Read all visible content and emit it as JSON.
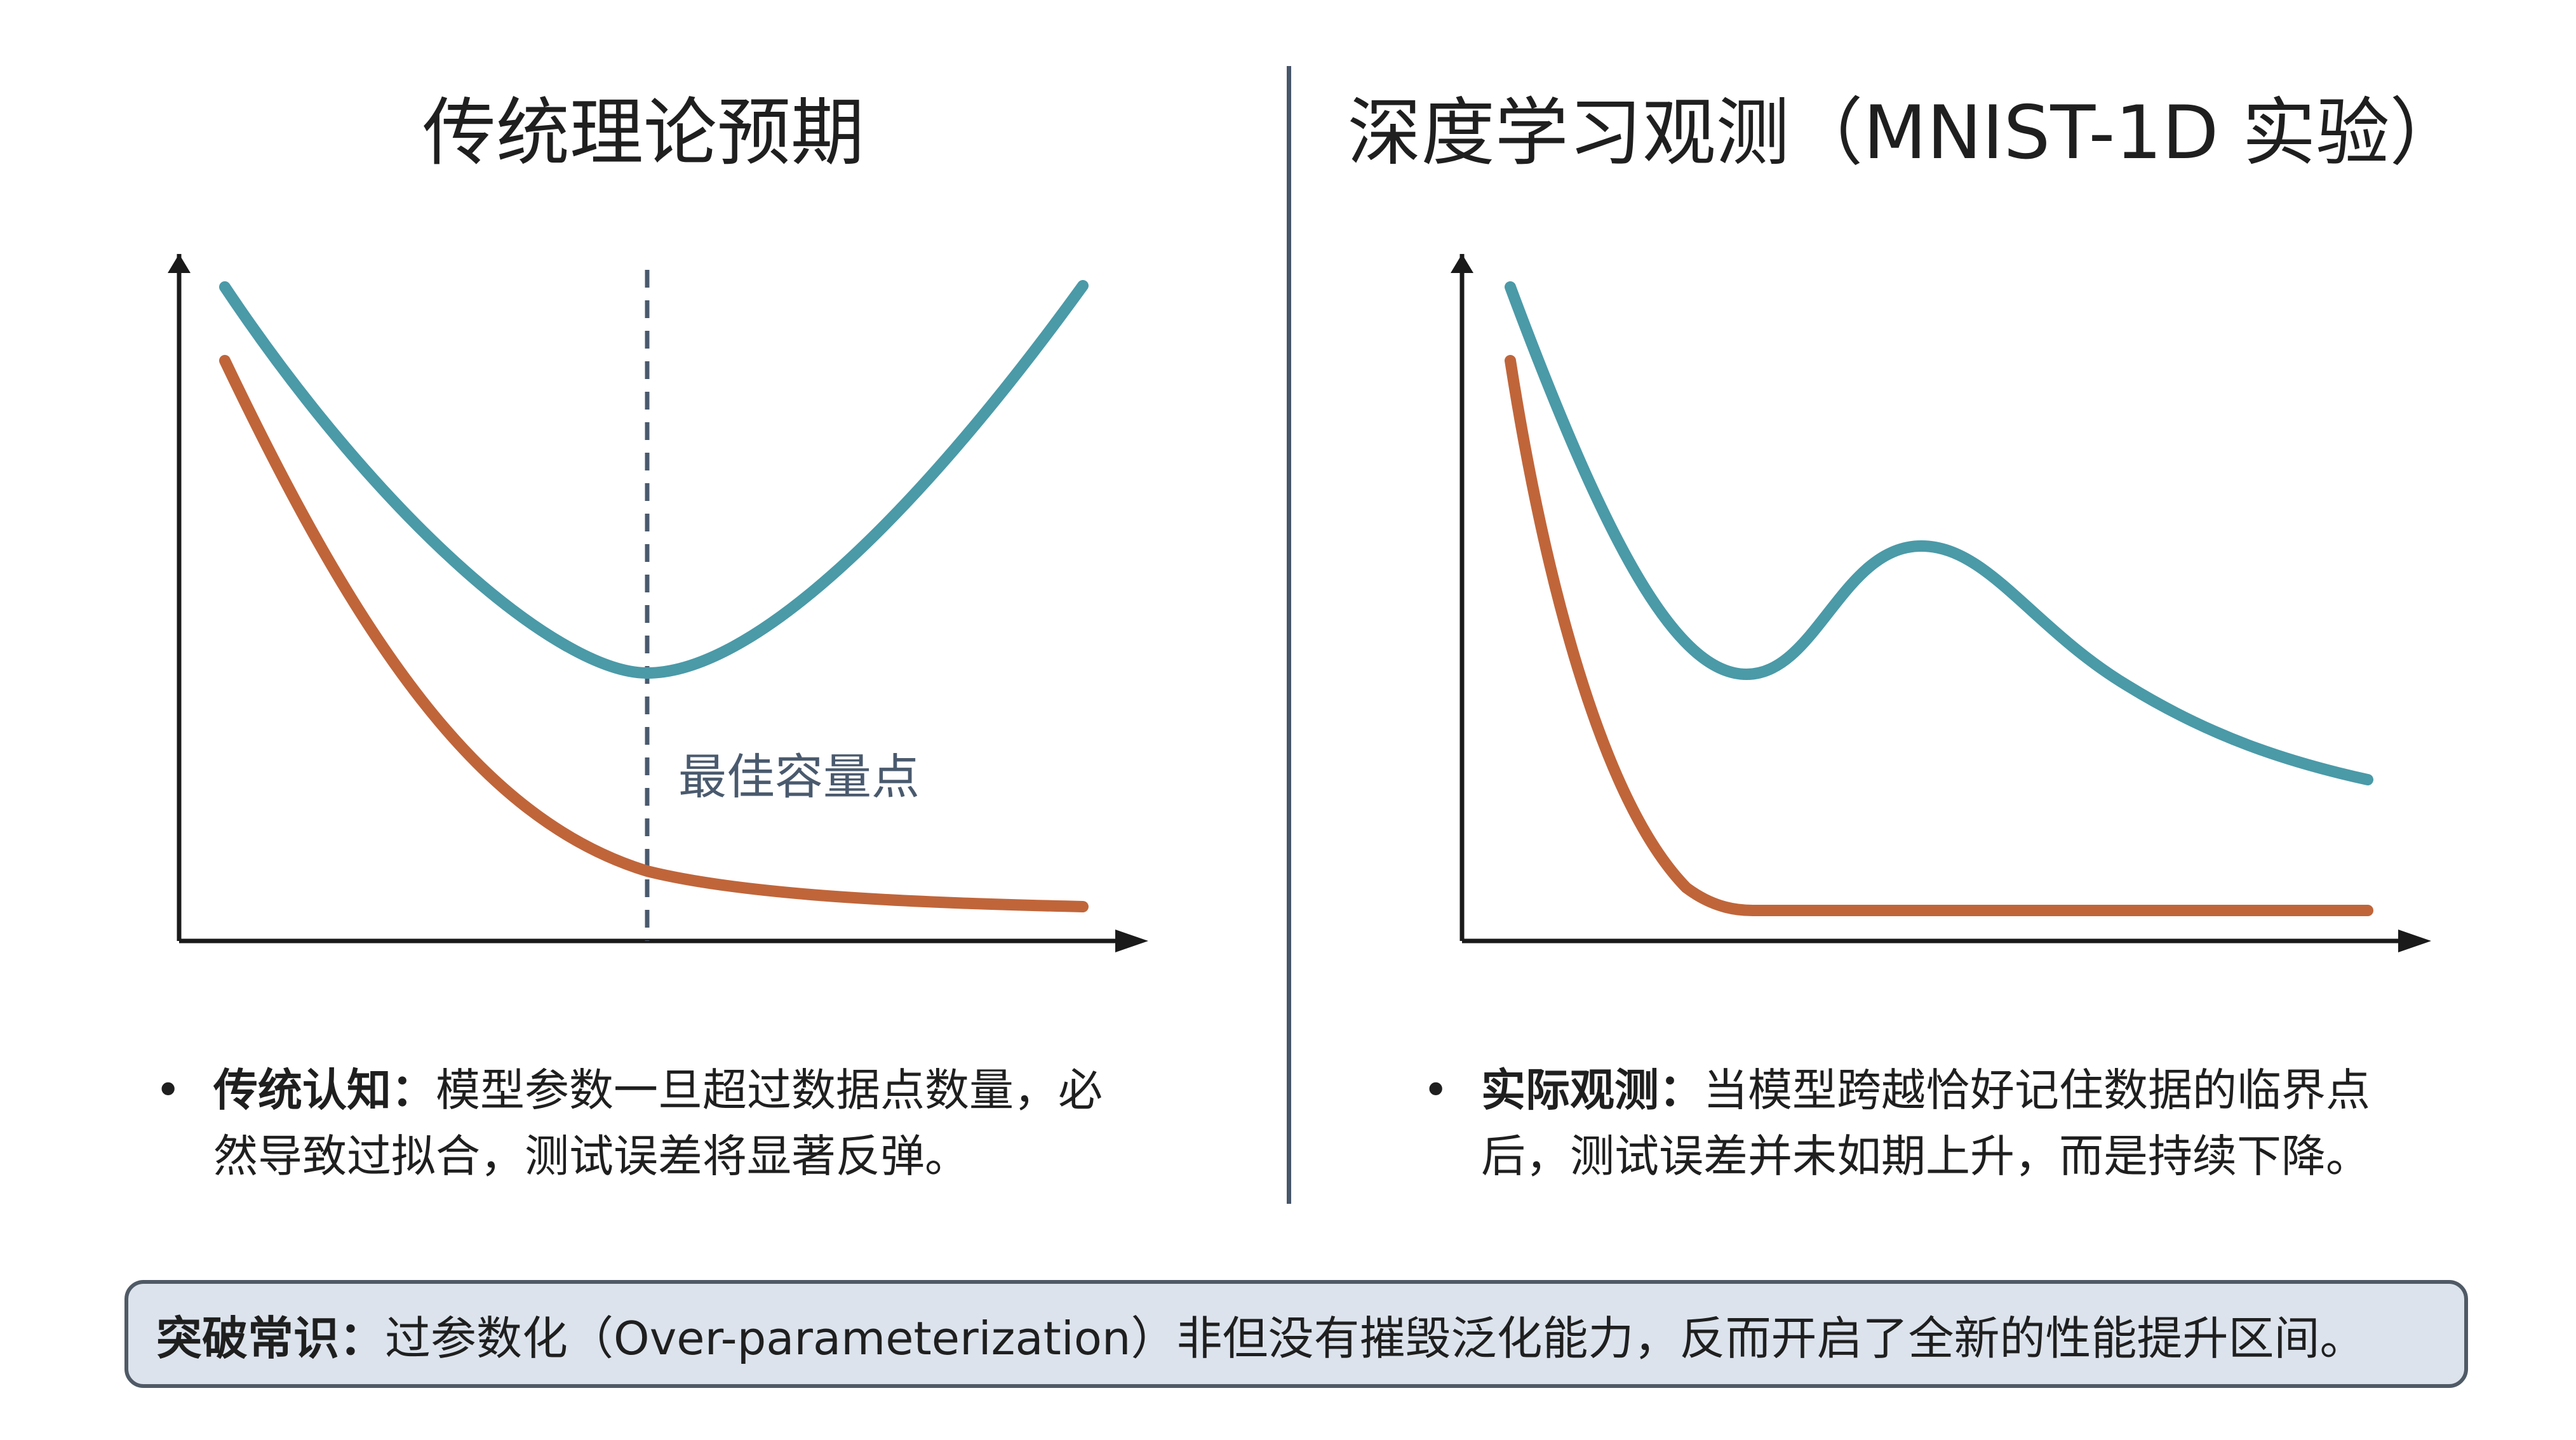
{
  "left_panel": {
    "title": "传统理论预期",
    "annotation": "最佳容量点",
    "bullet_lead": "传统认知：",
    "bullet_text": "模型参数一旦超过数据点数量，必然导致过拟合，测试误差将显著反弹。"
  },
  "right_panel": {
    "title": "深度学习观测（MNIST-1D 实验）",
    "bullet_lead": "实际观测：",
    "bullet_text": "当模型跨越恰好记住数据的临界点后，测试误差并未如期上升，而是持续下降。"
  },
  "banner": {
    "lead": "突破常识：",
    "text": "过参数化（Over-parameterization）非但没有摧毁泛化能力，反而开启了全新的性能提升区间。"
  },
  "bullet_symbol": "•",
  "colors": {
    "test_curve": "#4a9aa8",
    "train_curve": "#c0653a",
    "axis": "#1a1a1a",
    "divider": "#48566a",
    "annotation": "#4a5a6e",
    "banner_bg": "#dce3ec",
    "banner_border": "#4f5a66"
  }
}
